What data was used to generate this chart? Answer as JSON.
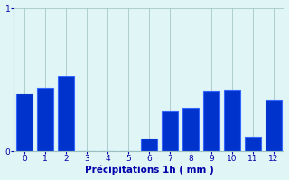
{
  "hours": [
    0,
    1,
    2,
    3,
    4,
    5,
    6,
    7,
    8,
    9,
    10,
    11,
    12
  ],
  "precip": [
    0.4,
    0.44,
    0.52,
    0,
    0,
    0,
    0.09,
    0.28,
    0.3,
    0.42,
    0.43,
    0.1,
    0.36
  ],
  "bar_color": "#0033cc",
  "bar_edge_color": "#3366ff",
  "background_color": "#e0f5f5",
  "grid_color": "#9bbfbf",
  "xlabel": "Précipitations 1h ( mm )",
  "xlabel_color": "#0000aa",
  "tick_color": "#0000aa",
  "ylim": [
    0,
    1
  ],
  "xlim": [
    -0.5,
    12.5
  ],
  "yticks": [
    0,
    1
  ],
  "xticks": [
    0,
    1,
    2,
    3,
    4,
    5,
    6,
    7,
    8,
    9,
    10,
    11,
    12
  ],
  "bar_width": 0.75
}
